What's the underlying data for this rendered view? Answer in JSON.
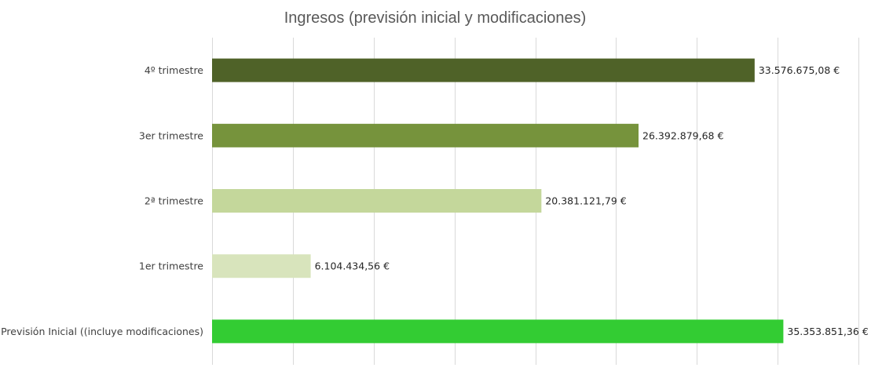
{
  "chart_data": {
    "type": "bar",
    "orientation": "horizontal",
    "title": "Ingresos (previsión inicial y modificaciones)",
    "xlabel": "",
    "ylabel": "",
    "xlim": [
      0,
      40000000
    ],
    "grid": true,
    "legend": "none",
    "categories": [
      "Previsión Inicial ((incluye modificaciones)",
      "1er trimestre",
      "2ª trimestre",
      "3er trimestre",
      "4º trimestre"
    ],
    "values": [
      35353851.36,
      6104434.56,
      20381121.79,
      26392879.68,
      33576675.08
    ],
    "data_labels": [
      "35.353.851,36 €",
      "6.104.434,56 €",
      "20.381.121,79 €",
      "26.392.879,68 €",
      "33.576.675,08 €"
    ],
    "colors": [
      "#33cc33",
      "#d8e4bc",
      "#c4d79b",
      "#76933c",
      "#4f6228"
    ]
  }
}
